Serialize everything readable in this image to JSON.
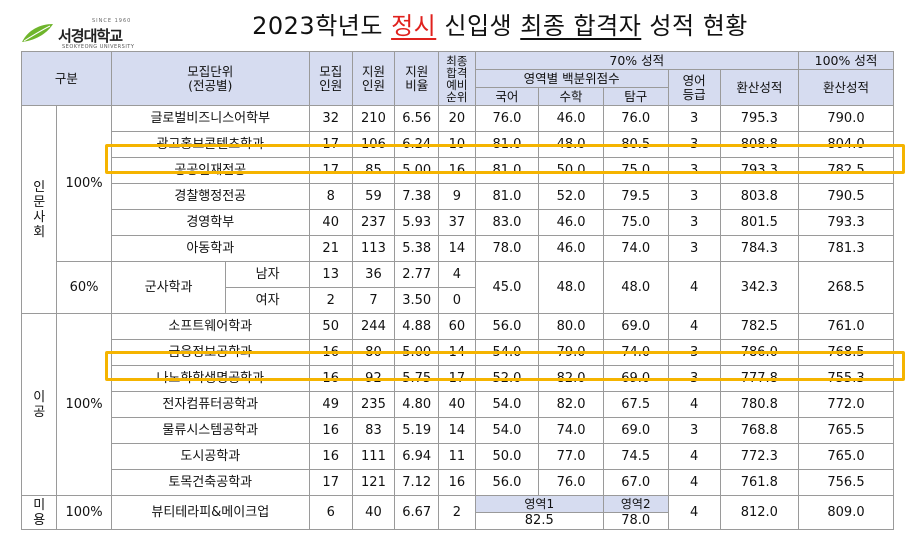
{
  "logo": {
    "since": "SINCE 1960",
    "name_ko": "서경대학교",
    "name_en": "SEOKYEONG UNIVERSITY"
  },
  "title": {
    "prefix": "2023학년도 ",
    "highlight": "정시",
    "middle": " 신입생 ",
    "underlined": "최종 합격자",
    "suffix": " 성적 현황"
  },
  "header": {
    "division": "구분",
    "unit": "모집단위\n(전공별)",
    "quota": "모집\n인원",
    "applicants": "지원\n인원",
    "ratio": "지원\n비율",
    "waitlist": "최종\n합격\n예비\n순위",
    "grp70": "70% 성적",
    "grp100": "100% 성적",
    "percentile": "영역별 백분위점수",
    "english": "영어\n등급",
    "converted70": "환산성적",
    "converted100": "환산성적",
    "korean": "국어",
    "math": "수학",
    "inquiry": "탐구"
  },
  "groups": {
    "humanities": "인문사회",
    "engineering": "이공",
    "beauty": "미용",
    "pct100a": "100%",
    "pct60": "60%",
    "pct100b": "100%",
    "pct100c": "100%",
    "military": "군사학과",
    "male": "남자",
    "female": "여자"
  },
  "rows": {
    "r1": {
      "name": "글로벌비즈니스어학부",
      "quota": "32",
      "apps": "210",
      "ratio": "6.56",
      "wait": "20",
      "kor": "76.0",
      "math": "46.0",
      "inq": "76.0",
      "eng": "3",
      "c70": "795.3",
      "c100": "790.0"
    },
    "r2": {
      "name": "광고홍보콘텐츠학과",
      "quota": "17",
      "apps": "106",
      "ratio": "6.24",
      "wait": "10",
      "kor": "81.0",
      "math": "48.0",
      "inq": "80.5",
      "eng": "3",
      "c70": "808.8",
      "c100": "804.0"
    },
    "r3": {
      "name": "공공인재전공",
      "quota": "17",
      "apps": "85",
      "ratio": "5.00",
      "wait": "16",
      "kor": "81.0",
      "math": "50.0",
      "inq": "75.0",
      "eng": "3",
      "c70": "793.3",
      "c100": "782.5"
    },
    "r4": {
      "name": "경찰행정전공",
      "quota": "8",
      "apps": "59",
      "ratio": "7.38",
      "wait": "9",
      "kor": "81.0",
      "math": "52.0",
      "inq": "79.5",
      "eng": "3",
      "c70": "803.8",
      "c100": "790.5"
    },
    "r5": {
      "name": "경영학부",
      "quota": "40",
      "apps": "237",
      "ratio": "5.93",
      "wait": "37",
      "kor": "83.0",
      "math": "46.0",
      "inq": "75.0",
      "eng": "3",
      "c70": "801.5",
      "c100": "793.3"
    },
    "r6": {
      "name": "아동학과",
      "quota": "21",
      "apps": "113",
      "ratio": "5.38",
      "wait": "14",
      "kor": "78.0",
      "math": "46.0",
      "inq": "74.0",
      "eng": "3",
      "c70": "784.3",
      "c100": "781.3"
    },
    "r7": {
      "quota": "13",
      "apps": "36",
      "ratio": "2.77",
      "wait": "4",
      "kor": "45.0",
      "math": "48.0",
      "inq": "48.0",
      "eng": "4",
      "c70": "342.3",
      "c100": "268.5"
    },
    "r8": {
      "quota": "2",
      "apps": "7",
      "ratio": "3.50",
      "wait": "0"
    },
    "r9": {
      "name": "소프트웨어학과",
      "quota": "50",
      "apps": "244",
      "ratio": "4.88",
      "wait": "60",
      "kor": "56.0",
      "math": "80.0",
      "inq": "69.0",
      "eng": "4",
      "c70": "782.5",
      "c100": "761.0"
    },
    "r10": {
      "name": "금융정보공학과",
      "quota": "16",
      "apps": "80",
      "ratio": "5.00",
      "wait": "14",
      "kor": "54.0",
      "math": "79.0",
      "inq": "74.0",
      "eng": "3",
      "c70": "786.0",
      "c100": "768.5"
    },
    "r11": {
      "name": "나노화학생명공학과",
      "quota": "16",
      "apps": "92",
      "ratio": "5.75",
      "wait": "17",
      "kor": "52.0",
      "math": "82.0",
      "inq": "69.0",
      "eng": "3",
      "c70": "777.8",
      "c100": "755.3"
    },
    "r12": {
      "name": "전자컴퓨터공학과",
      "quota": "49",
      "apps": "235",
      "ratio": "4.80",
      "wait": "40",
      "kor": "54.0",
      "math": "82.0",
      "inq": "67.5",
      "eng": "4",
      "c70": "780.8",
      "c100": "772.0"
    },
    "r13": {
      "name": "물류시스템공학과",
      "quota": "16",
      "apps": "83",
      "ratio": "5.19",
      "wait": "14",
      "kor": "54.0",
      "math": "74.0",
      "inq": "69.0",
      "eng": "3",
      "c70": "768.8",
      "c100": "765.5"
    },
    "r14": {
      "name": "도시공학과",
      "quota": "16",
      "apps": "111",
      "ratio": "6.94",
      "wait": "11",
      "kor": "50.0",
      "math": "77.0",
      "inq": "74.5",
      "eng": "4",
      "c70": "772.3",
      "c100": "765.0"
    },
    "r15": {
      "name": "토목건축공학과",
      "quota": "17",
      "apps": "121",
      "ratio": "7.12",
      "wait": "16",
      "kor": "56.0",
      "math": "76.0",
      "inq": "67.0",
      "eng": "4",
      "c70": "761.8",
      "c100": "756.5"
    },
    "r16": {
      "name": "뷰티테라피&메이크업",
      "quota": "6",
      "apps": "40",
      "ratio": "6.67",
      "wait": "2",
      "area1": "영역1",
      "area2": "영역2",
      "v1": "82.5",
      "v2": "78.0",
      "eng": "4",
      "c70": "812.0",
      "c100": "809.0"
    }
  },
  "highlight_color": "#f5b400"
}
